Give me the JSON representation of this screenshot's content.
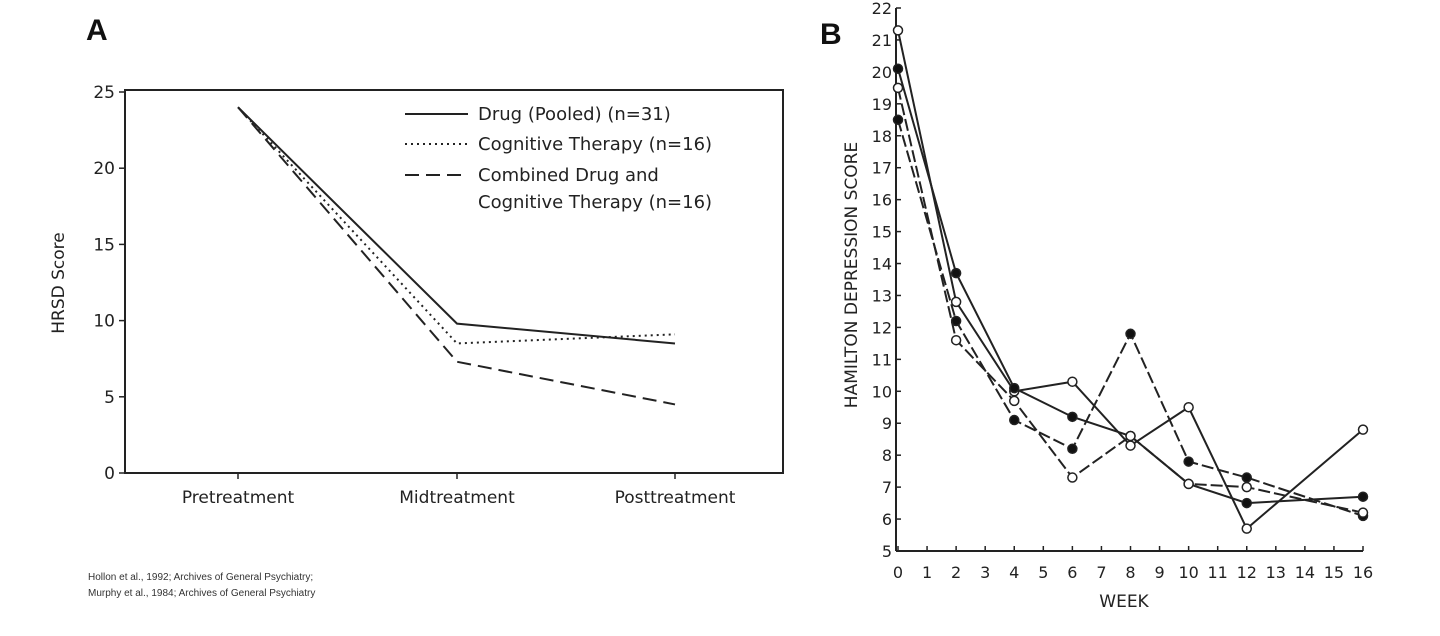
{
  "chart_data": [
    {
      "panel_label": "A",
      "type": "line",
      "ylabel": "HRSD Score",
      "xlabel": "",
      "categories": [
        "Pretreatment",
        "Midtreatment",
        "Posttreatment"
      ],
      "ylim": [
        0,
        25
      ],
      "yticks": [
        0,
        5,
        10,
        15,
        20,
        25
      ],
      "grid": false,
      "legend_position": "top-right",
      "series": [
        {
          "name": "Drug (Pooled) (n=31)",
          "style": "solid",
          "values": [
            24,
            9.8,
            8.5
          ]
        },
        {
          "name": "Cognitive Therapy (n=16)",
          "style": "dotted",
          "values": [
            24,
            8.5,
            9.1
          ]
        },
        {
          "name": "Combined Drug and Cognitive Therapy (n=16)",
          "name_lines": [
            "Combined Drug and",
            "Cognitive Therapy (n=16)"
          ],
          "style": "dashed",
          "values": [
            24,
            7.3,
            4.5
          ]
        }
      ]
    },
    {
      "panel_label": "B",
      "type": "line",
      "ylabel": "HAMILTON  DEPRESSION SCORE",
      "xlabel": "WEEK",
      "ylim": [
        5,
        22
      ],
      "xlim": [
        0,
        16
      ],
      "yticks": [
        5,
        6,
        7,
        8,
        9,
        10,
        11,
        12,
        13,
        14,
        15,
        16,
        17,
        18,
        19,
        20,
        21,
        22
      ],
      "xticks": [
        0,
        1,
        2,
        3,
        4,
        5,
        6,
        7,
        8,
        9,
        10,
        11,
        12,
        13,
        14,
        15,
        16
      ],
      "grid": false,
      "x": [
        0,
        2,
        4,
        6,
        8,
        10,
        12,
        16
      ],
      "series": [
        {
          "style": "solid",
          "marker": "open-circle",
          "values": [
            21.3,
            12.8,
            10.0,
            10.3,
            8.3,
            9.5,
            5.7,
            8.8
          ]
        },
        {
          "style": "solid",
          "marker": "filled-circle",
          "values": [
            20.1,
            13.7,
            10.1,
            9.2,
            8.6,
            7.1,
            6.5,
            6.7
          ]
        },
        {
          "style": "dashed",
          "marker": "filled-circle",
          "values": [
            18.5,
            12.2,
            9.1,
            8.2,
            11.8,
            7.8,
            7.3,
            6.1
          ]
        },
        {
          "style": "dashed",
          "marker": "open-circle",
          "values": [
            19.5,
            11.6,
            9.7,
            7.3,
            8.6,
            7.1,
            7.0,
            6.2
          ]
        }
      ]
    }
  ],
  "citation": [
    "Hollon et al., 1992; Archives of General Psychiatry;",
    "Murphy et al., 1984; Archives of General Psychiatry"
  ]
}
